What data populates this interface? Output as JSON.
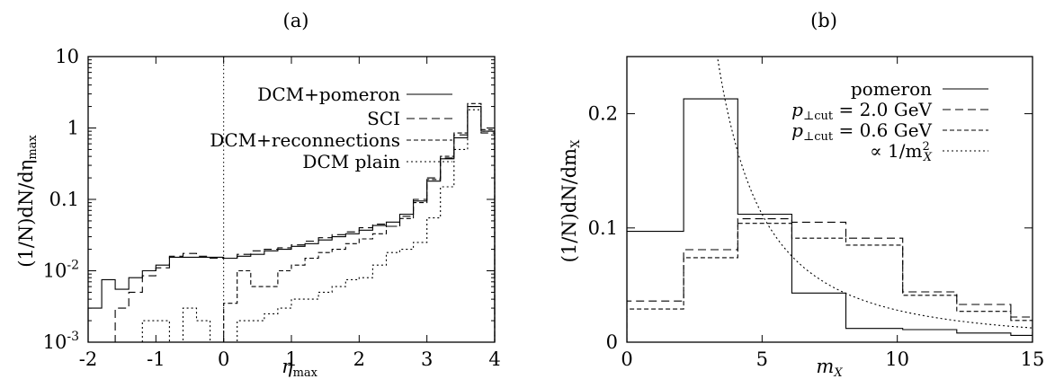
{
  "chart_data": [
    {
      "type": "line",
      "panel_label": "(a)",
      "xlabel_main": "η",
      "xlabel_sub": "max",
      "ylabel": "(1/N)dN/dη",
      "ylabel_sub": "max",
      "xlim": [
        -2,
        4
      ],
      "ylim": [
        0.001,
        10
      ],
      "log_y": true,
      "xticks": [
        "-2",
        "-1",
        "0",
        "1",
        "2",
        "3",
        "4"
      ],
      "yticks": [
        {
          "base": "10",
          "exp": "-3",
          "value": 0.001
        },
        {
          "base": "10",
          "exp": "-2",
          "value": 0.01
        },
        {
          "base": "0.1",
          "exp": "",
          "value": 0.1
        },
        {
          "base": "1",
          "exp": "",
          "value": 1
        },
        {
          "base": "10",
          "exp": "",
          "value": 10
        }
      ],
      "legend_position": "top-right",
      "vertical_marker_x": 0,
      "edges": [
        -2.0,
        -1.8,
        -1.6,
        -1.4,
        -1.2,
        -1.0,
        -0.8,
        -0.6,
        -0.4,
        -0.2,
        0.0,
        0.2,
        0.4,
        0.6,
        0.8,
        1.0,
        1.2,
        1.4,
        1.6,
        1.8,
        2.0,
        2.2,
        2.4,
        2.6,
        2.8,
        3.0,
        3.2,
        3.4,
        3.6,
        3.8,
        4.0
      ],
      "series": [
        {
          "name": "DCM+pomeron",
          "dash": "",
          "values": [
            0.003,
            0.0075,
            0.0055,
            0.008,
            0.01,
            0.012,
            0.0155,
            0.0155,
            0.0155,
            0.0155,
            0.015,
            0.016,
            0.017,
            0.019,
            0.02,
            0.022,
            0.024,
            0.027,
            0.03,
            0.033,
            0.037,
            0.043,
            0.048,
            0.062,
            0.095,
            0.18,
            0.37,
            0.73,
            2.0,
            0.9
          ]
        },
        {
          "name": "SCI",
          "dash": "9,5",
          "values": [
            null,
            0.0005,
            0.003,
            0.005,
            0.0085,
            0.011,
            0.016,
            0.0175,
            0.016,
            0.015,
            0.015,
            0.017,
            0.019,
            0.02,
            0.021,
            0.023,
            0.026,
            0.029,
            0.032,
            0.035,
            0.04,
            0.045,
            0.042,
            0.058,
            0.1,
            0.2,
            0.38,
            0.8,
            2.0,
            0.85
          ]
        },
        {
          "name": "DCM+reconnections",
          "dash": "5,3",
          "values": [
            null,
            null,
            null,
            null,
            null,
            null,
            null,
            null,
            null,
            null,
            0.0035,
            0.01,
            0.006,
            0.006,
            0.01,
            0.012,
            0.015,
            0.018,
            0.02,
            0.024,
            0.028,
            0.033,
            0.042,
            0.054,
            0.09,
            0.19,
            0.4,
            0.85,
            2.2,
            0.95
          ]
        },
        {
          "name": "DCM plain",
          "dash": "2,3",
          "values": [
            null,
            null,
            null,
            null,
            0.002,
            0.002,
            0.001,
            0.003,
            0.002,
            0.001,
            0.001,
            0.002,
            0.002,
            0.0025,
            0.003,
            0.004,
            0.004,
            0.005,
            0.006,
            0.0075,
            0.008,
            0.012,
            0.018,
            0.02,
            0.025,
            0.055,
            0.15,
            0.5,
            1.8,
            0.9
          ]
        }
      ]
    },
    {
      "type": "line",
      "panel_label": "(b)",
      "xlabel_main": "m",
      "xlabel_sub": "X",
      "ylabel": "(1/N)dN/dm",
      "ylabel_sub": "X",
      "xlim": [
        0,
        15
      ],
      "ylim": [
        0,
        0.25
      ],
      "log_y": false,
      "xticks": [
        "0",
        "5",
        "10",
        "15"
      ],
      "yticks": [
        {
          "label": "0",
          "value": 0
        },
        {
          "label": "0.1",
          "value": 0.1
        },
        {
          "label": "0.2",
          "value": 0.2
        }
      ],
      "legend_position": "top-right",
      "edges": [
        0,
        2.1,
        4.1,
        6.1,
        8.1,
        10.2,
        12.2,
        14.2,
        15
      ],
      "series": [
        {
          "name": "pomeron",
          "dash": "",
          "values": [
            0.097,
            0.213,
            0.112,
            0.043,
            0.012,
            0.011,
            0.008,
            0.006
          ]
        },
        {
          "name_prefix": "p",
          "name_sub": "⊥cut",
          "name_rest": " = 2.0 GeV",
          "dash": "9,5",
          "values": [
            0.036,
            0.081,
            0.108,
            0.105,
            0.091,
            0.044,
            0.033,
            0.022
          ]
        },
        {
          "name_prefix": "p",
          "name_sub": "⊥cut",
          "name_rest": " = 0.6 GeV",
          "dash": "5,3",
          "values": [
            0.029,
            0.074,
            0.104,
            0.091,
            0.085,
            0.041,
            0.027,
            0.019
          ]
        },
        {
          "name_prefix": "∝ 1/m",
          "name_sub": "X",
          "name_sup": "2",
          "dash": "2,3",
          "curve": "inverse_square",
          "scale": 2.8
        }
      ]
    }
  ]
}
